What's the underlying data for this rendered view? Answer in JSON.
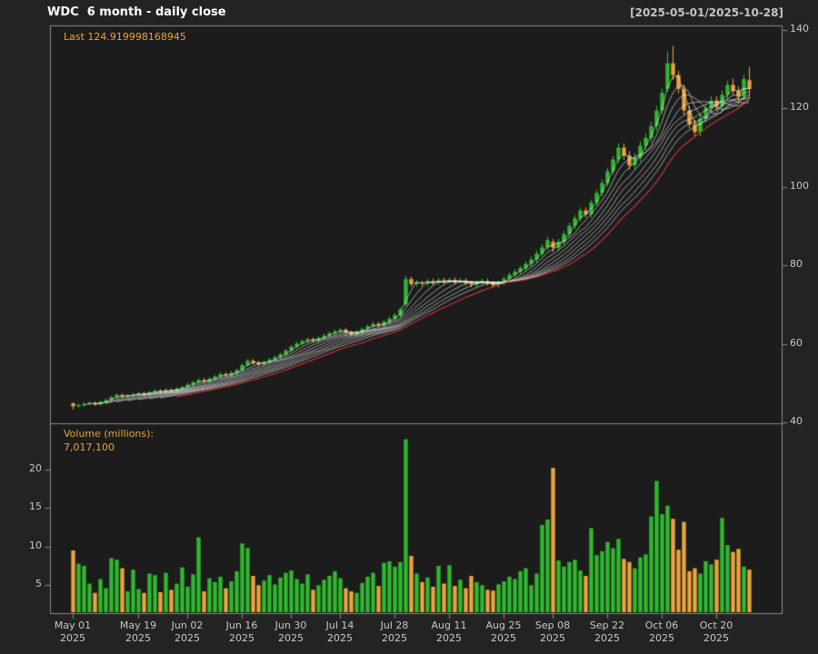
{
  "header": {
    "title": "WDC  6 month - daily close",
    "date_range": "[2025-05-01/2025-10-28]"
  },
  "price_panel": {
    "last_label": "Last 124.919998168945"
  },
  "volume_panel": {
    "label": "Volume (millions):",
    "value": "7,017,100"
  },
  "colors": {
    "up": "#2eb82e",
    "down": "#e8a33c",
    "ma_ribbon": "#f0f0f0",
    "ma_red": "#c43636",
    "frame": "#8a8a8a",
    "axis_text": "#c8c8c8",
    "background": "#232323",
    "plot_background": "#1c1c1c",
    "title_text": "#ffffff",
    "range_text": "#c4c4c4",
    "accent_orange": "#e8a33c"
  },
  "chart_data": {
    "type": "candlestick",
    "symbol": "WDC",
    "subtitle": "6 month - daily close",
    "price_axis_range": [
      40,
      140
    ],
    "price_axis_ticks": [
      40,
      60,
      80,
      100,
      120,
      140
    ],
    "volume_axis_ticks": [
      5,
      10,
      15,
      20
    ],
    "ma_ribbon_periods": [
      3,
      5,
      7,
      9,
      11,
      13,
      15,
      17
    ],
    "ma_red_period": 20,
    "last_close": 124.919998168945,
    "last_volume": 7017100,
    "x_ticks": [
      {
        "i": 0,
        "line1": "May 01",
        "line2": "2025"
      },
      {
        "i": 12,
        "line1": "May 19",
        "line2": "2025"
      },
      {
        "i": 21,
        "line1": "Jun 02",
        "line2": "2025"
      },
      {
        "i": 31,
        "line1": "Jun 16",
        "line2": "2025"
      },
      {
        "i": 40,
        "line1": "Jun 30",
        "line2": "2025"
      },
      {
        "i": 49,
        "line1": "Jul 14",
        "line2": "2025"
      },
      {
        "i": 59,
        "line1": "Jul 28",
        "line2": "2025"
      },
      {
        "i": 69,
        "line1": "Aug 11",
        "line2": "2025"
      },
      {
        "i": 79,
        "line1": "Aug 25",
        "line2": "2025"
      },
      {
        "i": 88,
        "line1": "Sep 08",
        "line2": "2025"
      },
      {
        "i": 98,
        "line1": "Sep 22",
        "line2": "2025"
      },
      {
        "i": 108,
        "line1": "Oct 06",
        "line2": "2025"
      },
      {
        "i": 118,
        "line1": "Oct 20",
        "line2": "2025"
      }
    ],
    "dates": [
      "2025-05-01",
      "2025-05-02",
      "2025-05-05",
      "2025-05-06",
      "2025-05-07",
      "2025-05-08",
      "2025-05-09",
      "2025-05-12",
      "2025-05-13",
      "2025-05-14",
      "2025-05-15",
      "2025-05-16",
      "2025-05-19",
      "2025-05-20",
      "2025-05-21",
      "2025-05-22",
      "2025-05-23",
      "2025-05-27",
      "2025-05-28",
      "2025-05-29",
      "2025-05-30",
      "2025-06-02",
      "2025-06-03",
      "2025-06-04",
      "2025-06-05",
      "2025-06-06",
      "2025-06-09",
      "2025-06-10",
      "2025-06-11",
      "2025-06-12",
      "2025-06-13",
      "2025-06-16",
      "2025-06-17",
      "2025-06-18",
      "2025-06-20",
      "2025-06-23",
      "2025-06-24",
      "2025-06-25",
      "2025-06-26",
      "2025-06-27",
      "2025-06-30",
      "2025-07-01",
      "2025-07-02",
      "2025-07-03",
      "2025-07-07",
      "2025-07-08",
      "2025-07-09",
      "2025-07-10",
      "2025-07-11",
      "2025-07-14",
      "2025-07-15",
      "2025-07-16",
      "2025-07-17",
      "2025-07-18",
      "2025-07-21",
      "2025-07-22",
      "2025-07-23",
      "2025-07-24",
      "2025-07-25",
      "2025-07-28",
      "2025-07-29",
      "2025-07-30",
      "2025-07-31",
      "2025-08-01",
      "2025-08-04",
      "2025-08-05",
      "2025-08-06",
      "2025-08-07",
      "2025-08-08",
      "2025-08-11",
      "2025-08-12",
      "2025-08-13",
      "2025-08-14",
      "2025-08-15",
      "2025-08-18",
      "2025-08-19",
      "2025-08-20",
      "2025-08-21",
      "2025-08-22",
      "2025-08-25",
      "2025-08-26",
      "2025-08-27",
      "2025-08-28",
      "2025-08-29",
      "2025-09-02",
      "2025-09-03",
      "2025-09-04",
      "2025-09-05",
      "2025-09-08",
      "2025-09-09",
      "2025-09-10",
      "2025-09-11",
      "2025-09-12",
      "2025-09-15",
      "2025-09-16",
      "2025-09-17",
      "2025-09-18",
      "2025-09-19",
      "2025-09-22",
      "2025-09-23",
      "2025-09-24",
      "2025-09-25",
      "2025-09-26",
      "2025-09-29",
      "2025-09-30",
      "2025-10-01",
      "2025-10-02",
      "2025-10-03",
      "2025-10-06",
      "2025-10-07",
      "2025-10-08",
      "2025-10-09",
      "2025-10-10",
      "2025-10-13",
      "2025-10-14",
      "2025-10-15",
      "2025-10-16",
      "2025-10-17",
      "2025-10-20",
      "2025-10-21",
      "2025-10-22",
      "2025-10-23",
      "2025-10-24",
      "2025-10-27",
      "2025-10-28"
    ],
    "open": [
      44.85,
      44.1,
      44.4,
      44.7,
      45.0,
      44.6,
      45.2,
      45.7,
      46.4,
      47.0,
      46.6,
      46.9,
      47.15,
      47.45,
      47.1,
      47.7,
      48.1,
      47.8,
      48.3,
      48.05,
      48.6,
      49.0,
      49.6,
      50.2,
      50.8,
      50.4,
      51.1,
      51.7,
      52.3,
      52.0,
      52.6,
      53.3,
      54.6,
      55.7,
      55.2,
      54.8,
      55.4,
      56.0,
      56.6,
      57.3,
      58.3,
      59.3,
      60.1,
      60.7,
      61.2,
      60.8,
      61.5,
      62.1,
      62.7,
      63.2,
      63.6,
      62.9,
      62.4,
      63.0,
      63.8,
      64.5,
      65.1,
      64.7,
      65.6,
      66.4,
      67.3,
      70.0,
      76.5,
      75.2,
      75.7,
      75.4,
      76.0,
      75.6,
      76.2,
      75.9,
      76.3,
      75.8,
      76.1,
      75.5,
      75.1,
      75.6,
      76.0,
      75.4,
      74.9,
      75.5,
      76.6,
      77.6,
      78.4,
      79.3,
      80.4,
      81.5,
      83.0,
      84.6,
      86.0,
      84.5,
      86.0,
      88.0,
      90.1,
      92.0,
      94.0,
      93.0,
      96.0,
      98.5,
      101.0,
      104.0,
      107.0,
      110.0,
      108.0,
      105.5,
      107.5,
      110.5,
      112.5,
      115.5,
      119.5,
      125.0,
      131.5,
      128.5,
      125.0,
      119.5,
      116.0,
      114.0,
      117.5,
      120.0,
      122.0,
      120.5,
      123.5,
      126.0,
      124.5,
      123.0,
      127.2
    ],
    "high": [
      45.15,
      44.75,
      45.05,
      45.35,
      45.35,
      45.55,
      46.05,
      46.75,
      47.35,
      47.35,
      47.25,
      47.5,
      47.8,
      47.8,
      48.05,
      48.45,
      48.45,
      48.65,
      48.65,
      48.95,
      49.35,
      50.05,
      50.65,
      51.25,
      51.25,
      51.55,
      52.15,
      52.75,
      52.75,
      53.05,
      53.75,
      55.05,
      56.15,
      56.15,
      55.65,
      55.85,
      56.45,
      57.05,
      57.75,
      58.75,
      59.75,
      60.55,
      61.15,
      61.65,
      61.65,
      61.95,
      62.55,
      63.15,
      63.65,
      64.05,
      64.05,
      63.35,
      63.45,
      64.25,
      64.95,
      65.55,
      65.55,
      66.2,
      67.0,
      67.9,
      69.4,
      77.3,
      77.1,
      76.3,
      76.0,
      76.6,
      76.6,
      76.8,
      76.8,
      76.9,
      76.9,
      76.7,
      76.7,
      76.1,
      76.2,
      76.6,
      76.6,
      76.0,
      76.1,
      77.2,
      78.2,
      79.0,
      79.9,
      81.0,
      82.3,
      83.8,
      85.4,
      87.3,
      86.8,
      86.8,
      88.8,
      90.9,
      92.8,
      94.8,
      94.8,
      96.8,
      99.3,
      101.9,
      104.9,
      107.9,
      111.1,
      111.1,
      109.1,
      108.6,
      111.6,
      113.6,
      116.6,
      120.6,
      125.1,
      134.5,
      135.9,
      129.6,
      126.1,
      120.6,
      117.1,
      118.6,
      121.1,
      123.1,
      123.1,
      124.6,
      127.1,
      127.6,
      125.6,
      128.6,
      130.6
    ],
    "low": [
      43.3,
      43.75,
      44.05,
      44.35,
      44.25,
      44.25,
      44.85,
      45.35,
      46.05,
      46.25,
      46.25,
      46.55,
      46.8,
      46.75,
      46.75,
      47.35,
      47.45,
      47.45,
      47.7,
      47.7,
      48.25,
      48.55,
      49.15,
      49.75,
      49.95,
      49.95,
      50.65,
      51.25,
      51.55,
      51.55,
      52.15,
      52.85,
      54.15,
      54.75,
      54.35,
      54.35,
      54.95,
      55.55,
      56.15,
      56.85,
      57.85,
      58.85,
      59.65,
      60.25,
      60.35,
      60.35,
      61.05,
      61.65,
      62.25,
      62.75,
      62.45,
      61.95,
      61.95,
      62.55,
      63.35,
      64.05,
      64.25,
      64.1,
      65.0,
      65.8,
      66.7,
      69.6,
      74.6,
      74.6,
      74.8,
      74.8,
      75.0,
      75.0,
      75.3,
      75.3,
      75.2,
      75.2,
      74.9,
      74.5,
      74.5,
      75.0,
      74.8,
      74.3,
      74.3,
      74.9,
      76.0,
      77.0,
      77.8,
      78.7,
      79.6,
      80.7,
      82.2,
      83.8,
      83.4,
      83.7,
      85.2,
      87.2,
      89.3,
      91.2,
      92.2,
      92.2,
      95.2,
      97.6,
      100.1,
      103.1,
      105.9,
      106.9,
      104.4,
      104.4,
      106.4,
      109.4,
      111.4,
      114.4,
      118.4,
      124.2,
      127.3,
      123.9,
      118.4,
      114.9,
      112.7,
      112.9,
      116.4,
      118.9,
      119.4,
      119.4,
      122.4,
      123.4,
      121.9,
      121.9,
      122.4
    ],
    "close": [
      44.1,
      44.4,
      44.7,
      45.0,
      44.6,
      45.2,
      45.7,
      46.4,
      47.0,
      46.6,
      46.9,
      47.15,
      47.45,
      47.1,
      47.7,
      48.1,
      47.8,
      48.3,
      48.05,
      48.6,
      49.0,
      49.6,
      50.2,
      50.8,
      50.4,
      51.1,
      51.7,
      52.3,
      52.0,
      52.6,
      53.3,
      54.6,
      55.7,
      55.2,
      54.8,
      55.4,
      56.0,
      56.6,
      57.3,
      58.3,
      59.3,
      60.1,
      60.7,
      61.2,
      60.8,
      61.5,
      62.1,
      62.7,
      63.2,
      63.6,
      62.9,
      62.4,
      63.0,
      63.8,
      64.5,
      65.1,
      64.7,
      65.6,
      66.4,
      67.3,
      68.8,
      76.5,
      75.2,
      75.7,
      75.4,
      76.0,
      75.6,
      76.2,
      75.9,
      76.3,
      75.8,
      76.1,
      75.5,
      75.1,
      75.6,
      76.0,
      75.4,
      74.9,
      75.5,
      76.6,
      77.6,
      78.4,
      79.3,
      80.4,
      81.5,
      83.0,
      84.6,
      86.5,
      84.5,
      86.0,
      88.0,
      90.1,
      92.0,
      94.0,
      93.0,
      96.0,
      98.5,
      101.0,
      104.0,
      107.0,
      110.0,
      108.0,
      105.5,
      107.5,
      110.5,
      112.5,
      115.5,
      119.5,
      124.0,
      131.5,
      128.5,
      125.0,
      119.5,
      116.0,
      114.0,
      117.5,
      120.0,
      122.0,
      120.5,
      123.5,
      126.0,
      124.5,
      123.0,
      127.5,
      124.92
    ],
    "volume_millions": [
      9.5,
      7.8,
      7.5,
      5.2,
      4.0,
      5.8,
      4.6,
      8.5,
      8.3,
      7.2,
      4.2,
      7.0,
      4.5,
      4.0,
      6.5,
      6.3,
      4.1,
      6.6,
      4.4,
      5.2,
      7.3,
      4.8,
      6.4,
      11.2,
      4.2,
      5.9,
      5.4,
      6.1,
      4.6,
      5.5,
      6.8,
      10.4,
      9.8,
      6.2,
      5.0,
      5.6,
      6.3,
      5.1,
      6.0,
      6.6,
      6.9,
      5.8,
      5.2,
      6.4,
      4.4,
      5.0,
      5.7,
      6.2,
      6.8,
      5.9,
      4.6,
      4.2,
      4.0,
      5.3,
      6.1,
      6.6,
      4.9,
      7.9,
      8.1,
      7.4,
      8.0,
      23.9,
      8.8,
      6.5,
      5.4,
      6.0,
      4.8,
      7.5,
      5.2,
      7.6,
      4.9,
      5.7,
      4.6,
      6.2,
      5.4,
      5.0,
      4.4,
      4.3,
      5.1,
      5.5,
      6.1,
      5.8,
      6.8,
      7.2,
      5.0,
      6.5,
      12.8,
      13.5,
      20.2,
      8.2,
      7.4,
      8.0,
      8.3,
      6.9,
      6.2,
      12.4,
      8.9,
      9.4,
      10.6,
      9.8,
      11.0,
      8.4,
      8.0,
      7.2,
      8.6,
      9.0,
      13.9,
      18.5,
      14.2,
      15.3,
      13.6,
      9.6,
      13.2,
      6.8,
      7.2,
      6.5,
      8.1,
      7.7,
      8.3,
      13.7,
      10.2,
      9.3,
      9.7,
      7.4,
      7.0171
    ]
  }
}
